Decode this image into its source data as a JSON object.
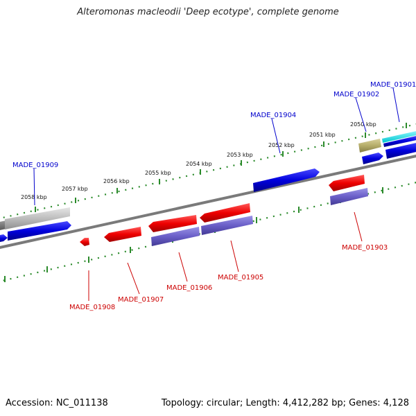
{
  "title": "Alteromonas macleodii 'Deep ecotype', complete genome",
  "footer": {
    "accession": "Accession: NC_011138",
    "summary": "Topology: circular; Length: 4,412,282 bp; Genes: 4,128"
  },
  "colors": {
    "backbone": "#808080",
    "tick_ruler": "#2a8a2a",
    "forward_label": "#0000cc",
    "reverse_label": "#cc0000",
    "gene_blue": "#0000dd",
    "gene_red": "#ee0000",
    "gene_purple": "#6a5fc8",
    "gene_gray": "#bdbdbd",
    "gene_olive": "#b5ad6a",
    "gene_cyan": "#00e5ee"
  },
  "ruler": {
    "ticks": [
      {
        "label": "2058 kbp"
      },
      {
        "label": "2057 kbp"
      },
      {
        "label": "2056 kbp"
      },
      {
        "label": "2055 kbp"
      },
      {
        "label": "2054 kbp"
      },
      {
        "label": "2053 kbp"
      },
      {
        "label": "2052 kbp"
      },
      {
        "label": "2051 kbp"
      },
      {
        "label": "2050 kbp"
      }
    ]
  },
  "forward_labels": [
    {
      "text": "MADE_01909"
    },
    {
      "text": "MADE_01904"
    },
    {
      "text": "MADE_01902"
    },
    {
      "text": "MADE_01901"
    }
  ],
  "reverse_labels": [
    {
      "text": "MADE_01908"
    },
    {
      "text": "MADE_01907"
    },
    {
      "text": "MADE_01906"
    },
    {
      "text": "MADE_01905"
    },
    {
      "text": "MADE_01903"
    }
  ]
}
